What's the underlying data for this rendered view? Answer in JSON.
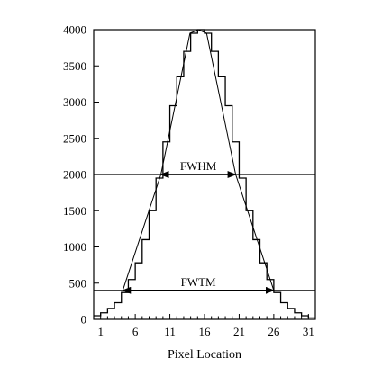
{
  "chart_data": {
    "type": "line",
    "xlabel": "Pixel Location",
    "ylabel": "",
    "xlim": [
      0,
      32
    ],
    "ylim": [
      0,
      4000
    ],
    "x_ticks": [
      1,
      6,
      11,
      16,
      21,
      26,
      31
    ],
    "y_ticks": [
      0,
      500,
      1000,
      1500,
      2000,
      2500,
      3000,
      3500,
      4000
    ],
    "grid": false,
    "series": [
      {
        "style": "step",
        "x": [
          0,
          1,
          2,
          3,
          4,
          5,
          6,
          7,
          8,
          9,
          10,
          11,
          12,
          13,
          14,
          15,
          16,
          17,
          18,
          19,
          20,
          21,
          22,
          23,
          24,
          25,
          26,
          27,
          28,
          29,
          30,
          31,
          32
        ],
        "values": [
          50,
          90,
          150,
          230,
          370,
          550,
          780,
          1100,
          1500,
          1950,
          2450,
          2950,
          3350,
          3700,
          3950,
          4000,
          3950,
          3700,
          3350,
          2950,
          2450,
          1950,
          1500,
          1100,
          780,
          550,
          370,
          230,
          150,
          90,
          50,
          20,
          0
        ]
      },
      {
        "style": "peak-profile",
        "x": [
          4.2,
          9.7,
          13.9,
          15.1,
          16.3,
          20.5,
          26.0
        ],
        "values": [
          400,
          2000,
          3950,
          4000,
          3950,
          2000,
          400
        ]
      }
    ],
    "reference_lines": [
      {
        "y": 2000
      },
      {
        "y": 400
      }
    ],
    "annotations": [
      {
        "label": "FWHM",
        "x_start": 9.7,
        "x_end": 20.5,
        "y": 2000
      },
      {
        "label": "FWTM",
        "x_start": 4.2,
        "x_end": 26.0,
        "y": 400
      }
    ]
  }
}
